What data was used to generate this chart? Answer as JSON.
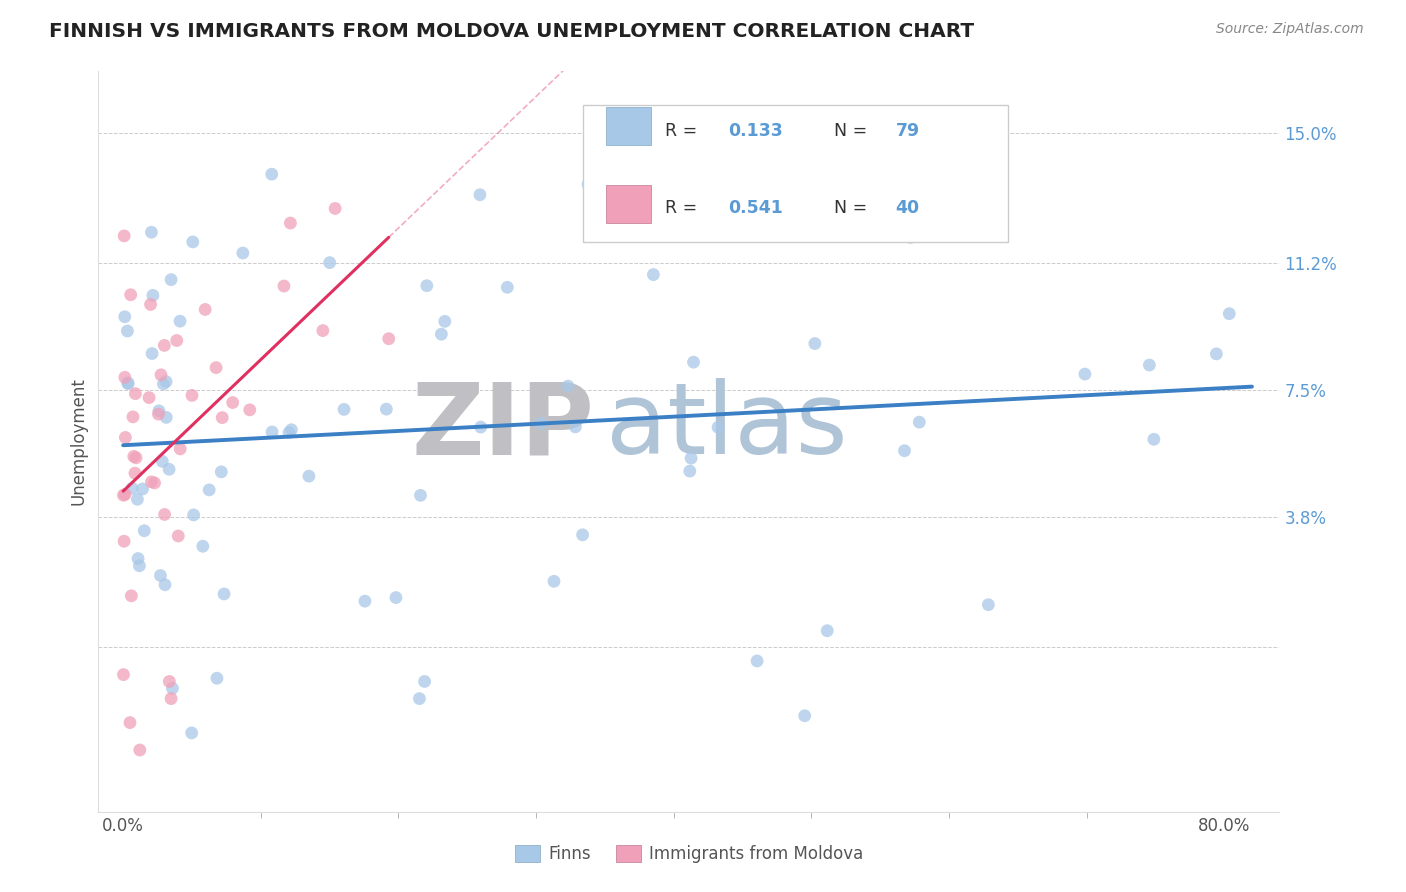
{
  "title": "FINNISH VS IMMIGRANTS FROM MOLDOVA UNEMPLOYMENT CORRELATION CHART",
  "source": "Source: ZipAtlas.com",
  "ylabel_label": "Unemployment",
  "color_finns": "#a8c8e8",
  "color_moldova": "#f0a0b8",
  "color_trendline_finns": "#3b7fc4",
  "color_trendline_moldova": "#e03060",
  "background_color": "#ffffff",
  "grid_color": "#cccccc",
  "tick_color": "#5b9bd5",
  "title_color": "#222222",
  "ylabel_color": "#555555",
  "source_color": "#888888",
  "watermark_zip_color": "#c8c8cc",
  "watermark_atlas_color": "#b8c8d8"
}
